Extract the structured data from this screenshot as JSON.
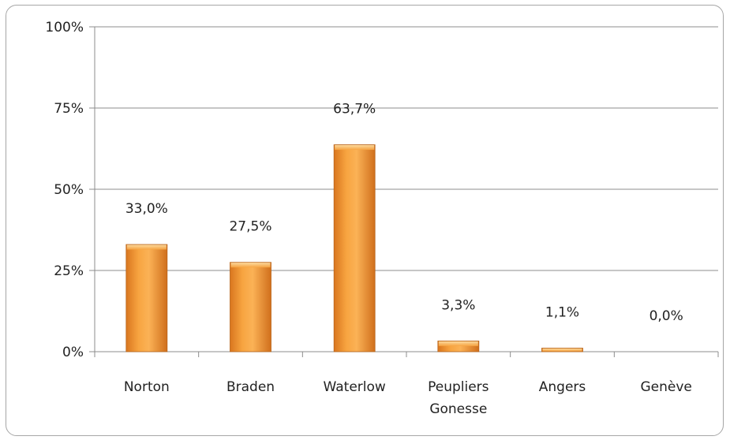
{
  "chart_data": {
    "type": "bar",
    "categories": [
      [
        "Norton"
      ],
      [
        "Braden"
      ],
      [
        "Waterlow"
      ],
      [
        "Peupliers",
        "Gonesse"
      ],
      [
        "Angers"
      ],
      [
        "Genève"
      ]
    ],
    "values": [
      33.0,
      27.5,
      63.7,
      3.3,
      1.1,
      0.0
    ],
    "data_labels": [
      "33,0%",
      "27,5%",
      "63,7%",
      "3,3%",
      "1,1%",
      "0,0%"
    ],
    "yticks": [
      0,
      25,
      50,
      75,
      100
    ],
    "ytick_labels": [
      "0%",
      "25%",
      "50%",
      "75%",
      "100%"
    ],
    "ylim": [
      0,
      100
    ],
    "grid": true,
    "bar_color": "#f39a35",
    "bar_edge_color": "#b8641a",
    "gridline_color": "#8c8c8c"
  }
}
